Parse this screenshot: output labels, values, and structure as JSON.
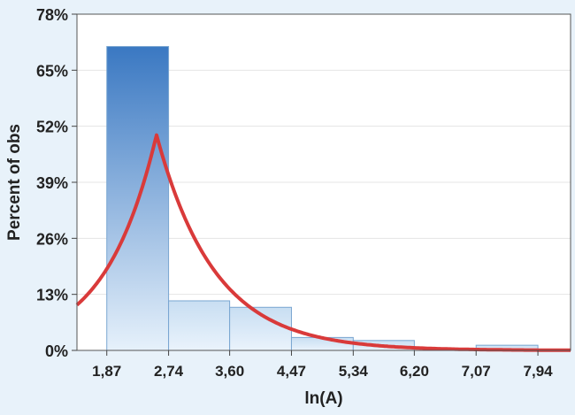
{
  "chart_data": {
    "type": "bar",
    "title": "",
    "xlabel": "ln(A)",
    "ylabel": "Percent of obs",
    "x_ticks": [
      "1,87",
      "2,74",
      "3,60",
      "4,47",
      "5,34",
      "6,20",
      "7,07",
      "7,94"
    ],
    "x_tick_values": [
      1.87,
      2.74,
      3.6,
      4.47,
      5.34,
      6.2,
      7.07,
      7.94
    ],
    "y_ticks": [
      "0%",
      "13%",
      "26%",
      "39%",
      "52%",
      "65%",
      "78%"
    ],
    "ylim": [
      0,
      78
    ],
    "xlim": [
      1.45,
      8.4
    ],
    "bins": [
      {
        "x0": 1.87,
        "x1": 2.74,
        "value": 70.5
      },
      {
        "x0": 2.74,
        "x1": 3.6,
        "value": 11.5
      },
      {
        "x0": 3.6,
        "x1": 4.47,
        "value": 10.0
      },
      {
        "x0": 4.47,
        "x1": 5.34,
        "value": 3.0
      },
      {
        "x0": 5.34,
        "x1": 6.2,
        "value": 2.3
      },
      {
        "x0": 6.2,
        "x1": 7.07,
        "value": 0.0
      },
      {
        "x0": 7.07,
        "x1": 7.94,
        "value": 1.2
      }
    ],
    "fit_curve": {
      "type": "laplace",
      "peak_x": 2.57,
      "peak_y": 50,
      "scale_left": 0.72,
      "scale_right": 0.82
    },
    "grid": true,
    "colors": {
      "fit_curve": "#d93a3a",
      "bar_top": "#3a78c2",
      "bar_bottom": "#e6f1fb",
      "bar_stroke": "#7aa6d1",
      "plot_background": "#ffffff",
      "page_background": "#e8f2fa"
    }
  }
}
